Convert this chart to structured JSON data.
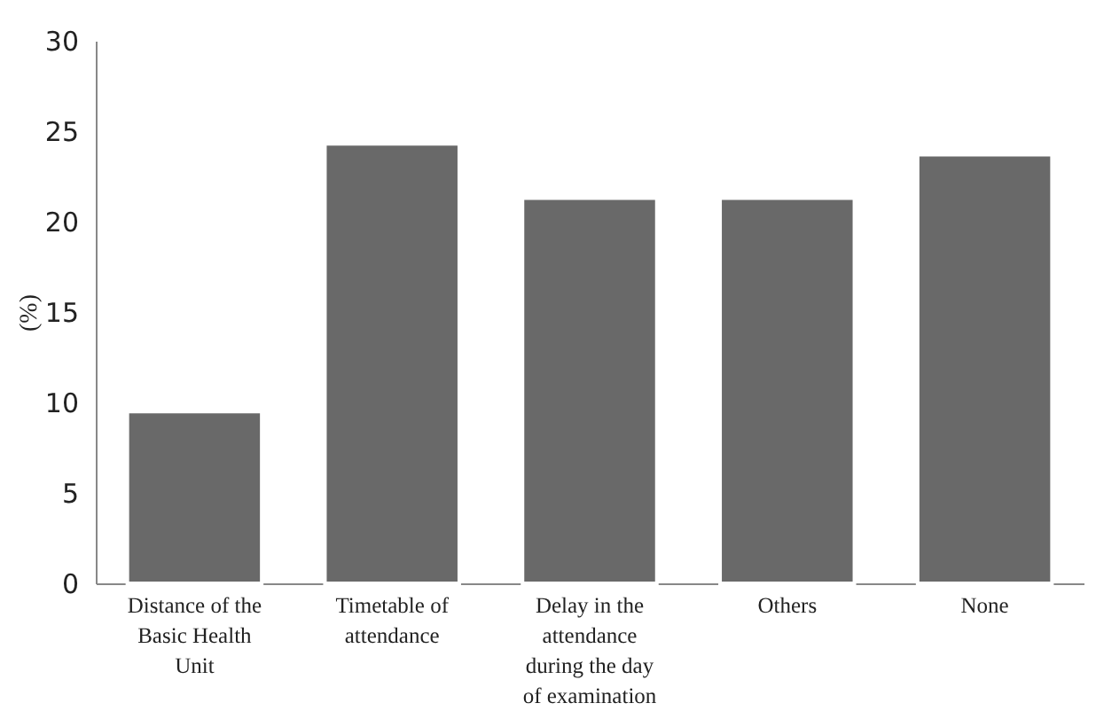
{
  "chart_data": {
    "type": "bar",
    "ylabel": "(%)",
    "categories": [
      "Distance of the Basic Health Unit",
      "Timetable of attendance",
      "Delay in the attendance during the day of examination",
      "Others",
      "None"
    ],
    "values": [
      9.5,
      24.3,
      21.3,
      21.3,
      23.7
    ],
    "color": "#696969",
    "ylim": [
      0,
      30
    ],
    "yticks": [
      0,
      5,
      10,
      15,
      20,
      25,
      30
    ],
    "grid": false
  }
}
